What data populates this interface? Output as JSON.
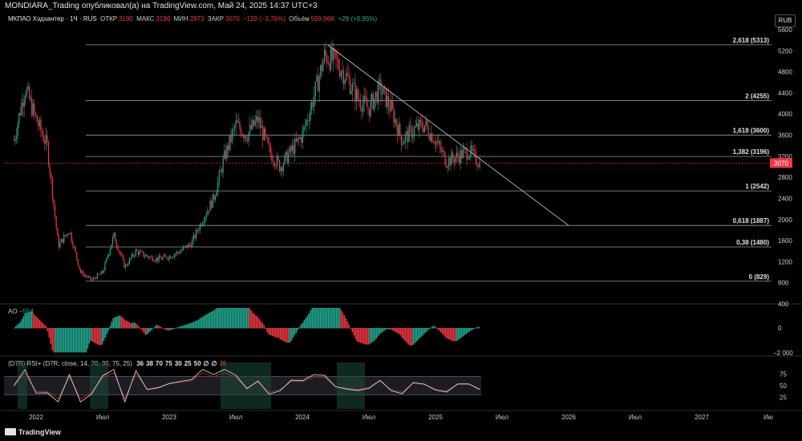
{
  "header": {
    "publisher_line": "MONDIARA_Trading опубликовал(а) на TradingView.com, Май 24, 2025 14:37 UTC+3"
  },
  "legend": {
    "symbol": "МКПАО Хэдхантер · 1Ч · RUS",
    "open_label": "ОТКР",
    "open_value": "3190",
    "high_label": "МАКС",
    "high_value": "3196",
    "low_label": "МИН",
    "low_value": "2973",
    "close_label": "ЗАКР",
    "close_value": "3070",
    "change": "−120 (−3,76%)",
    "volume_label": "Объём",
    "volume_value": "599,96K",
    "volume_change": "+29 (+0,95%)"
  },
  "currency": "RUB",
  "ao": {
    "name": "AO",
    "value": "−554"
  },
  "rsi": {
    "name": "(D7R) RSI+ (D7R, close, 14, 70, 30, 75, 25)",
    "values": [
      "36",
      "38",
      "70",
      "75",
      "30",
      "25",
      "50",
      "∅",
      "∅",
      "36"
    ]
  },
  "branding": {
    "logo_text": "TradingView"
  },
  "colors": {
    "up": "#22ab94",
    "down": "#f23645",
    "price_tag": "#f23645",
    "fib_line": "#9598a1"
  },
  "chart_data": [
    {
      "type": "candlestick",
      "title": "МКПАО Хэдхантер · 1Ч · RUS",
      "ylim": [
        400,
        5600
      ],
      "y_ticks": [
        "5600",
        "5200",
        "4800",
        "4400",
        "4000",
        "3600",
        "3200",
        "2800",
        "2400",
        "2000",
        "1600",
        "1200",
        "800",
        "400"
      ],
      "x_ticks": [
        "2022",
        "Июл",
        "2023",
        "Июл",
        "2024",
        "Июл",
        "2025",
        "Июл",
        "2026",
        "Июл",
        "2027",
        "Ию"
      ],
      "last_price": "3070",
      "price_path": [
        [
          "2021-11",
          3500
        ],
        [
          "2021-12",
          4500
        ],
        [
          "2022-01",
          3900
        ],
        [
          "2022-02",
          3400
        ],
        [
          "2022-03",
          1500
        ],
        [
          "2022-04",
          1800
        ],
        [
          "2022-05",
          1000
        ],
        [
          "2022-06",
          850
        ],
        [
          "2022-07",
          1000
        ],
        [
          "2022-08",
          1700
        ],
        [
          "2022-09",
          1100
        ],
        [
          "2022-10",
          1400
        ],
        [
          "2022-11",
          1300
        ],
        [
          "2022-12",
          1250
        ],
        [
          "2023-01",
          1300
        ],
        [
          "2023-02",
          1400
        ],
        [
          "2023-03",
          1550
        ],
        [
          "2023-04",
          2000
        ],
        [
          "2023-05",
          2400
        ],
        [
          "2023-06",
          3200
        ],
        [
          "2023-07",
          3800
        ],
        [
          "2023-08",
          3600
        ],
        [
          "2023-09",
          3900
        ],
        [
          "2023-10",
          3300
        ],
        [
          "2023-11",
          3000
        ],
        [
          "2023-12",
          3300
        ],
        [
          "2024-01",
          3600
        ],
        [
          "2024-02",
          4300
        ],
        [
          "2024-03",
          5100
        ],
        [
          "2024-04",
          5000
        ],
        [
          "2024-05",
          4700
        ],
        [
          "2024-06",
          4300
        ],
        [
          "2024-07",
          4100
        ],
        [
          "2024-08",
          4500
        ],
        [
          "2024-09",
          4100
        ],
        [
          "2024-10",
          3500
        ],
        [
          "2024-11",
          3700
        ],
        [
          "2024-12",
          3800
        ],
        [
          "2025-01",
          3500
        ],
        [
          "2025-02",
          3100
        ],
        [
          "2025-03",
          3200
        ],
        [
          "2025-04",
          3300
        ],
        [
          "2025-05",
          3070
        ]
      ],
      "fibonacci": [
        {
          "ratio": "2,618",
          "price": 5313
        },
        {
          "ratio": "2",
          "price": 4255
        },
        {
          "ratio": "1,618",
          "price": 3600
        },
        {
          "ratio": "1,382",
          "price": 3196
        },
        {
          "ratio": "1",
          "price": 2542
        },
        {
          "ratio": "0,618",
          "price": 1887
        },
        {
          "ratio": "0,38",
          "price": 1480
        },
        {
          "ratio": "0",
          "price": 829
        }
      ],
      "trendline": {
        "from": [
          "2024-04",
          5313
        ],
        "to": [
          "2026-01",
          1887
        ]
      }
    },
    {
      "type": "bar",
      "title": "AO",
      "y_ticks": [
        "0",
        "−2 000"
      ],
      "last_value": -554
    },
    {
      "type": "line",
      "title": "RSI+",
      "ylim": [
        0,
        100
      ],
      "y_ticks": [
        "75",
        "50",
        "25"
      ],
      "levels": [
        70,
        30
      ]
    }
  ]
}
